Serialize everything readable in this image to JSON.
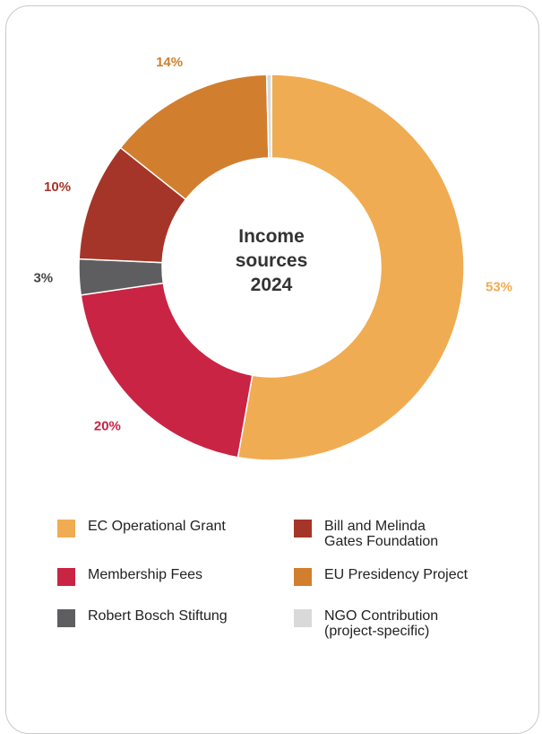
{
  "chart_data": {
    "type": "pie",
    "title": "Income sources 2024",
    "title_lines": [
      "Income",
      "sources",
      "2024"
    ],
    "donut": true,
    "slices": [
      {
        "label": "EC Operational Grant",
        "value": 53,
        "display": "53%",
        "color": "#f0ac52"
      },
      {
        "label": "Membership Fees",
        "value": 20,
        "display": "20%",
        "color": "#c92444"
      },
      {
        "label": "Robert Bosch Stiftung",
        "value": 3,
        "display": "3%",
        "color": "#5e5e60"
      },
      {
        "label": "Bill and Melinda Gates Foundation",
        "value": 10,
        "display": "10%",
        "color": "#a53528"
      },
      {
        "label": "EU Presidency Project",
        "value": 14,
        "display": "14%",
        "color": "#d17f2e"
      },
      {
        "label": "NGO Contribution (project-specific)",
        "value": 0.4,
        "display": "",
        "color": "#d9d9d9"
      }
    ],
    "legend_position": "bottom"
  },
  "legend": {
    "items": [
      {
        "lines": [
          "EC Operational Grant"
        ],
        "color": "#f0ac52"
      },
      {
        "lines": [
          "Bill and Melinda",
          "Gates Foundation"
        ],
        "color": "#a53528"
      },
      {
        "lines": [
          "Membership Fees"
        ],
        "color": "#c92444"
      },
      {
        "lines": [
          "EU Presidency Project"
        ],
        "color": "#d17f2e"
      },
      {
        "lines": [
          "Robert Bosch Stiftung"
        ],
        "color": "#5e5e60"
      },
      {
        "lines": [
          "NGO Contribution",
          "(project-specific)"
        ],
        "color": "#d9d9d9"
      }
    ]
  }
}
